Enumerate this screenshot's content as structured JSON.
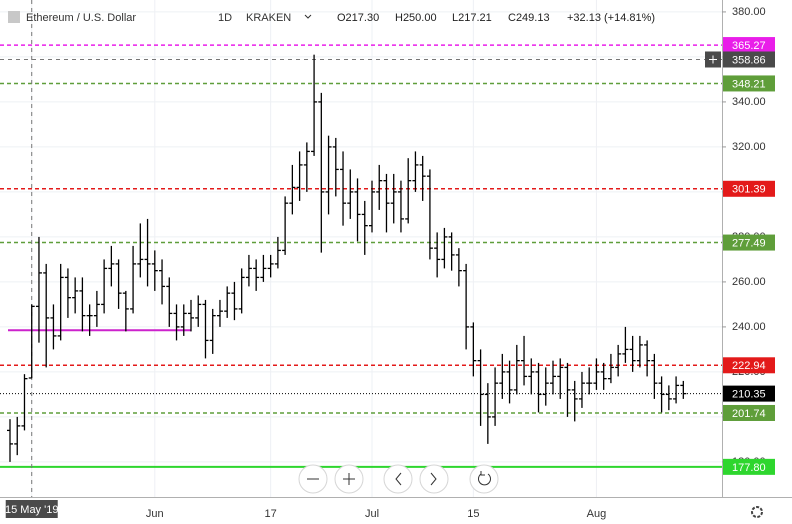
{
  "chart_data": {
    "type": "ohlc",
    "header": {
      "symbol": "Ethereum / U.S. Dollar",
      "interval": "1D",
      "exchange": "KRAKEN",
      "open": "O217.30",
      "high": "H250.00",
      "low": "L217.21",
      "close": "C249.13",
      "change": "+32.13 (+14.81%)"
    },
    "categories": [
      null,
      null,
      null,
      "15 May '19",
      null,
      null,
      null,
      null,
      null,
      null,
      null,
      null,
      null,
      null,
      null,
      null,
      null,
      null,
      null,
      null,
      "Jun",
      null,
      null,
      null,
      null,
      null,
      null,
      null,
      null,
      null,
      null,
      null,
      null,
      null,
      null,
      null,
      "17",
      null,
      null,
      null,
      null,
      null,
      null,
      null,
      null,
      null,
      null,
      null,
      null,
      null,
      "Jul",
      null,
      null,
      null,
      null,
      null,
      null,
      null,
      null,
      null,
      null,
      null,
      null,
      null,
      "15",
      null,
      null,
      null,
      null,
      null,
      null,
      null,
      null,
      null,
      null,
      null,
      null,
      null,
      null,
      null,
      null,
      "Aug",
      null,
      null,
      null,
      null,
      null,
      null,
      null,
      null,
      null,
      null,
      null,
      null
    ],
    "ohlc": {
      "color": "#000000",
      "open": [
        194,
        188,
        196,
        217.3,
        249.13,
        264,
        244,
        236,
        262,
        253,
        256,
        245,
        245,
        250,
        266,
        268,
        255,
        248,
        268,
        270,
        268,
        265,
        258,
        246,
        240,
        246,
        244,
        250,
        234,
        245,
        247,
        255,
        248,
        262,
        266,
        262,
        266,
        268,
        274,
        295,
        302,
        312,
        318,
        340,
        300,
        320,
        310,
        295,
        300,
        290,
        285,
        300,
        305,
        295,
        300,
        288,
        305,
        312,
        307,
        275,
        270,
        280,
        272,
        265,
        240,
        225,
        210,
        200,
        215,
        220,
        212,
        225,
        218,
        220,
        210,
        215,
        218,
        222,
        212,
        208,
        215,
        215,
        220,
        217,
        222,
        228,
        230,
        225,
        232,
        225,
        215,
        210,
        208,
        214
      ],
      "high": [
        199,
        200,
        219,
        250,
        280,
        268,
        250,
        268,
        266,
        262,
        262,
        250,
        256,
        270,
        276,
        270,
        256,
        276,
        286,
        288,
        274,
        270,
        262,
        250,
        250,
        252,
        254,
        252,
        248,
        252,
        258,
        260,
        266,
        272,
        270,
        272,
        272,
        280,
        298,
        312,
        318,
        322,
        361,
        344,
        325,
        324,
        318,
        310,
        306,
        296,
        305,
        312,
        308,
        308,
        305,
        315,
        318,
        316,
        310,
        282,
        284,
        282,
        275,
        268,
        242,
        230,
        215,
        222,
        228,
        225,
        232,
        236,
        226,
        224,
        222,
        225,
        226,
        224,
        216,
        220,
        222,
        226,
        224,
        228,
        232,
        240,
        236,
        236,
        234,
        228,
        218,
        214,
        218,
        216
      ],
      "low": [
        180,
        183,
        194,
        217.21,
        233,
        222,
        230,
        234,
        244,
        246,
        238,
        236,
        240,
        246,
        258,
        248,
        238,
        246,
        262,
        258,
        256,
        250,
        240,
        234,
        236,
        238,
        240,
        226,
        228,
        240,
        244,
        243,
        246,
        258,
        256,
        260,
        262,
        266,
        272,
        290,
        296,
        300,
        316,
        273,
        290,
        298,
        285,
        288,
        278,
        272,
        282,
        292,
        282,
        286,
        282,
        286,
        300,
        296,
        270,
        262,
        266,
        265,
        258,
        230,
        218,
        196,
        188,
        196,
        208,
        206,
        210,
        214,
        210,
        202,
        205,
        210,
        208,
        200,
        198,
        204,
        210,
        212,
        212,
        215,
        218,
        224,
        220,
        222,
        218,
        208,
        202,
        203,
        206,
        208
      ],
      "close": [
        188,
        196,
        217,
        249.13,
        264,
        244,
        236,
        262,
        253,
        256,
        245,
        245,
        250,
        266,
        268,
        255,
        248,
        268,
        270,
        268,
        265,
        258,
        246,
        240,
        246,
        244,
        250,
        234,
        245,
        247,
        255,
        248,
        262,
        266,
        262,
        266,
        268,
        274,
        295,
        302,
        312,
        318,
        340,
        300,
        320,
        310,
        295,
        300,
        290,
        285,
        300,
        305,
        295,
        300,
        288,
        305,
        312,
        307,
        275,
        270,
        280,
        272,
        265,
        240,
        225,
        210,
        200,
        215,
        220,
        212,
        225,
        218,
        220,
        210,
        215,
        218,
        222,
        212,
        208,
        215,
        215,
        220,
        217,
        222,
        228,
        230,
        225,
        232,
        225,
        215,
        210,
        208,
        214,
        210.35
      ]
    },
    "last_price_label": "210.35",
    "ylim": [
      164.4,
      385.3
    ],
    "yticks": [
      {
        "value": 180,
        "label": "180.00"
      },
      {
        "value": 200,
        "label": "200.00"
      },
      {
        "value": 220,
        "label": "220.00"
      },
      {
        "value": 240,
        "label": "240.00"
      },
      {
        "value": 260,
        "label": "260.00"
      },
      {
        "value": 280,
        "label": "280.00"
      },
      {
        "value": 300,
        "label": "300.00"
      },
      {
        "value": 320,
        "label": "320.00"
      },
      {
        "value": 340,
        "label": "340.00"
      },
      {
        "value": 360,
        "label": "360.00"
      },
      {
        "value": 380,
        "label": "380.00"
      }
    ],
    "grid": true,
    "levels": [
      {
        "value": 365.27,
        "label": "365.27",
        "color": "#e91ee9",
        "style": "dashed"
      },
      {
        "value": 348.21,
        "label": "348.21",
        "color": "#5f9e3a",
        "style": "dashed"
      },
      {
        "value": 301.39,
        "label": "301.39",
        "color": "#e31a1a",
        "style": "dashed"
      },
      {
        "value": 277.49,
        "label": "277.49",
        "color": "#5f9e3a",
        "style": "dashed"
      },
      {
        "value": 222.94,
        "label": "222.94",
        "color": "#e31a1a",
        "style": "dashed"
      },
      {
        "value": 201.74,
        "label": "201.74",
        "color": "#5f9e3a",
        "style": "dashed"
      },
      {
        "value": 177.8,
        "label": "177.80",
        "color": "#2ed62e",
        "style": "solid"
      }
    ],
    "trendline": {
      "value": 238.5,
      "from": 0,
      "to": 25,
      "color": "#cc22cc"
    },
    "crosshair": {
      "index": 3,
      "price": {
        "value": 358.86,
        "label": "358.86"
      }
    }
  }
}
